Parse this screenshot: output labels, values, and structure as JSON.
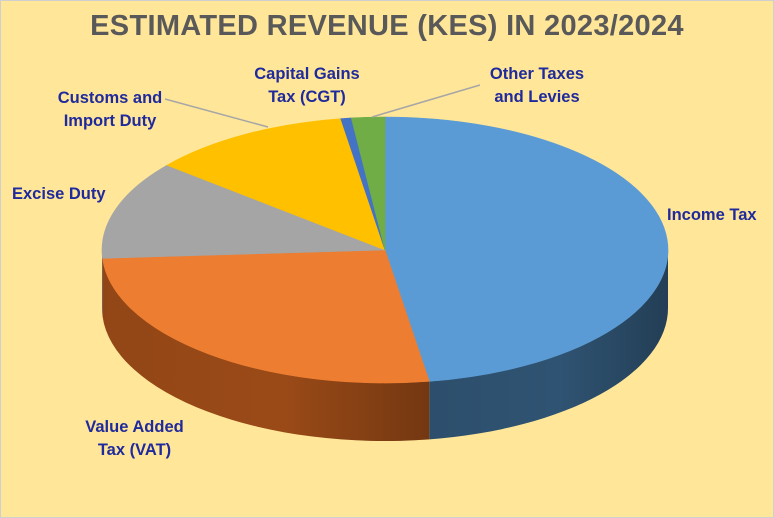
{
  "chart_data": {
    "type": "pie",
    "title": "ESTIMATED REVENUE (KES) IN 2023/2024",
    "unit": "%",
    "slices": [
      {
        "name": "Income Tax",
        "label_lines": [
          "Income Tax"
        ],
        "value": 47.5,
        "color": "#5b9bd5",
        "side_color": "#2f5372"
      },
      {
        "name": "Value Added Tax (VAT)",
        "label_lines": [
          "Value Added",
          "Tax (VAT)"
        ],
        "value": 26.5,
        "color": "#ed7d31",
        "side_color": "#9a4a17"
      },
      {
        "name": "Excise Duty",
        "label_lines": [
          "Excise Duty"
        ],
        "value": 12.0,
        "color": "#a5a5a5",
        "side_color": "#6e6e6e"
      },
      {
        "name": "Customs and Import Duty",
        "label_lines": [
          "Customs and",
          "Import Duty"
        ],
        "value": 11.5,
        "color": "#ffc000",
        "side_color": "#a37b00"
      },
      {
        "name": "Capital Gains Tax (CGT)",
        "label_lines": [
          "Capital Gains",
          "Tax (CGT)"
        ],
        "value": 0.6,
        "color": "#4472c4",
        "side_color": "#28457a"
      },
      {
        "name": "Other Taxes and Levies",
        "label_lines": [
          "Other Taxes",
          "and Levies"
        ],
        "value": 1.9,
        "color": "#70ad47",
        "side_color": "#44702a"
      }
    ],
    "legend": "none",
    "data_labels": "category names outside slices"
  }
}
